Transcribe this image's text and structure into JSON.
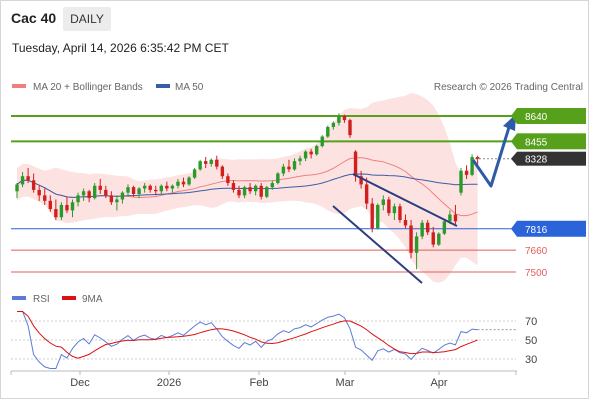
{
  "header": {
    "title": "Cac 40",
    "interval": "DAILY",
    "datetime": "Tuesday, April 14, 2026 6:35:42 PM CET"
  },
  "legend": {
    "bb_label": "MA 20 + Bollinger Bands",
    "ma50_label": "MA 50",
    "credit": "Research © 2026 Trading Central"
  },
  "rsi_legend": {
    "rsi_label": "RSI",
    "ma_label": "9MA"
  },
  "colors": {
    "up": "#2b9a2b",
    "down": "#d11f1f",
    "band_fill": "#fde2e2",
    "ma20": "#f08080",
    "ma50": "#3a5da8",
    "resistance": "#56a01b",
    "support": "#2b63d9",
    "support_red": "#e45c5c",
    "last_price": "#333333",
    "rsi": "#5b7bd6",
    "rsi_ma": "#dd1111"
  },
  "chart_data": {
    "type": "candlestick",
    "x_ticks": [
      "Dec",
      "2026",
      "Feb",
      "Mar",
      "Apr"
    ],
    "y_range": [
      7380,
      8680
    ],
    "levels": [
      {
        "label": "8640",
        "value": 8640,
        "kind": "resistance"
      },
      {
        "label": "8455",
        "value": 8455,
        "kind": "resistance"
      },
      {
        "label": "8328",
        "value": 8328,
        "kind": "last"
      },
      {
        "label": "7816",
        "value": 7816,
        "kind": "support"
      },
      {
        "label": "7660",
        "value": 7660,
        "kind": "support2"
      },
      {
        "label": "7500",
        "value": 7500,
        "kind": "support2"
      }
    ],
    "candles": [
      [
        8090,
        8150,
        8040,
        8140
      ],
      [
        8140,
        8230,
        8120,
        8200
      ],
      [
        8200,
        8260,
        8150,
        8170
      ],
      [
        8170,
        8220,
        8080,
        8100
      ],
      [
        8100,
        8130,
        8020,
        8060
      ],
      [
        8060,
        8110,
        7990,
        8020
      ],
      [
        8020,
        8060,
        7940,
        7960
      ],
      [
        7960,
        8030,
        7880,
        7900
      ],
      [
        7900,
        8010,
        7880,
        7990
      ],
      [
        7990,
        8050,
        7930,
        7950
      ],
      [
        7950,
        8030,
        7900,
        8010
      ],
      [
        8010,
        8080,
        7980,
        8060
      ],
      [
        8060,
        8110,
        8020,
        8090
      ],
      [
        8090,
        8100,
        8010,
        8040
      ],
      [
        8040,
        8150,
        8030,
        8130
      ],
      [
        8130,
        8180,
        8070,
        8100
      ],
      [
        8100,
        8130,
        8040,
        8060
      ],
      [
        8060,
        8090,
        7990,
        8010
      ],
      [
        8010,
        8060,
        7950,
        8030
      ],
      [
        8030,
        8090,
        8000,
        8080
      ],
      [
        8080,
        8140,
        8050,
        8120
      ],
      [
        8120,
        8130,
        8050,
        8070
      ],
      [
        8070,
        8120,
        8040,
        8110
      ],
      [
        8110,
        8150,
        8080,
        8130
      ],
      [
        8130,
        8140,
        8080,
        8100
      ],
      [
        8100,
        8130,
        8060,
        8090
      ],
      [
        8090,
        8140,
        8070,
        8130
      ],
      [
        8130,
        8160,
        8090,
        8110
      ],
      [
        8110,
        8140,
        8080,
        8130
      ],
      [
        8130,
        8180,
        8110,
        8160
      ],
      [
        8160,
        8190,
        8120,
        8140
      ],
      [
        8140,
        8200,
        8130,
        8190
      ],
      [
        8190,
        8260,
        8180,
        8250
      ],
      [
        8250,
        8320,
        8240,
        8310
      ],
      [
        8310,
        8340,
        8260,
        8290
      ],
      [
        8290,
        8330,
        8270,
        8320
      ],
      [
        8320,
        8350,
        8250,
        8270
      ],
      [
        8270,
        8280,
        8180,
        8200
      ],
      [
        8200,
        8220,
        8130,
        8150
      ],
      [
        8150,
        8170,
        8080,
        8100
      ],
      [
        8100,
        8130,
        8040,
        8060
      ],
      [
        8060,
        8130,
        8040,
        8120
      ],
      [
        8120,
        8150,
        8070,
        8090
      ],
      [
        8090,
        8140,
        8060,
        8130
      ],
      [
        8130,
        8150,
        8030,
        8050
      ],
      [
        8050,
        8130,
        8040,
        8120
      ],
      [
        8120,
        8170,
        8100,
        8150
      ],
      [
        8150,
        8230,
        8140,
        8220
      ],
      [
        8220,
        8290,
        8200,
        8270
      ],
      [
        8270,
        8320,
        8230,
        8250
      ],
      [
        8250,
        8330,
        8240,
        8310
      ],
      [
        8310,
        8350,
        8280,
        8330
      ],
      [
        8330,
        8390,
        8310,
        8380
      ],
      [
        8380,
        8400,
        8330,
        8360
      ],
      [
        8360,
        8430,
        8350,
        8420
      ],
      [
        8420,
        8500,
        8410,
        8490
      ],
      [
        8490,
        8570,
        8480,
        8560
      ],
      [
        8560,
        8600,
        8540,
        8590
      ],
      [
        8590,
        8660,
        8570,
        8640
      ],
      [
        8640,
        8650,
        8590,
        8610
      ],
      [
        8610,
        8620,
        8480,
        8500
      ],
      [
        8380,
        8390,
        8160,
        8200
      ],
      [
        8200,
        8240,
        8110,
        8140
      ],
      [
        8140,
        8190,
        7960,
        8000
      ],
      [
        8000,
        8040,
        7790,
        7820
      ],
      [
        7820,
        8000,
        7810,
        7990
      ],
      [
        7990,
        8060,
        7950,
        8030
      ],
      [
        8030,
        8050,
        7910,
        7930
      ],
      [
        7930,
        8000,
        7880,
        7980
      ],
      [
        7980,
        8000,
        7860,
        7880
      ],
      [
        7880,
        7920,
        7820,
        7840
      ],
      [
        7840,
        7880,
        7600,
        7640
      ],
      [
        7640,
        7790,
        7520,
        7760
      ],
      [
        7760,
        7880,
        7740,
        7860
      ],
      [
        7860,
        7880,
        7770,
        7790
      ],
      [
        7790,
        7830,
        7680,
        7700
      ],
      [
        7700,
        7790,
        7690,
        7780
      ],
      [
        7780,
        7890,
        7770,
        7870
      ],
      [
        7870,
        7950,
        7850,
        7920
      ],
      [
        7920,
        7990,
        7850,
        7870
      ],
      [
        8080,
        8260,
        8060,
        8240
      ],
      [
        8240,
        8280,
        8180,
        8210
      ],
      [
        8210,
        8360,
        8200,
        8340
      ],
      [
        8340,
        8350,
        8260,
        8328
      ]
    ],
    "rsi_y_ticks": [
      70,
      50,
      30
    ],
    "rsi_range": [
      20,
      80
    ]
  }
}
